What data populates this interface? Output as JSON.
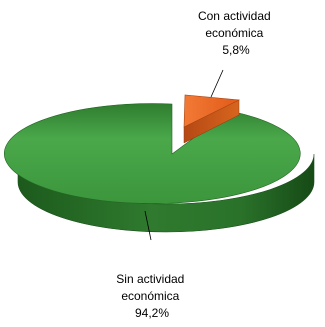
{
  "chart_data": {
    "type": "pie",
    "style": "3d-exploded",
    "slices": [
      {
        "label_lines": [
          "Sin actividad",
          "económica"
        ],
        "value_label": "94,2%",
        "value": 94.2,
        "color": "#3f9a3f"
      },
      {
        "label_lines": [
          "Con actividad",
          "económica"
        ],
        "value_label": "5,8%",
        "value": 5.8,
        "color": "#f06a28"
      }
    ],
    "title": "",
    "legend": "none"
  }
}
